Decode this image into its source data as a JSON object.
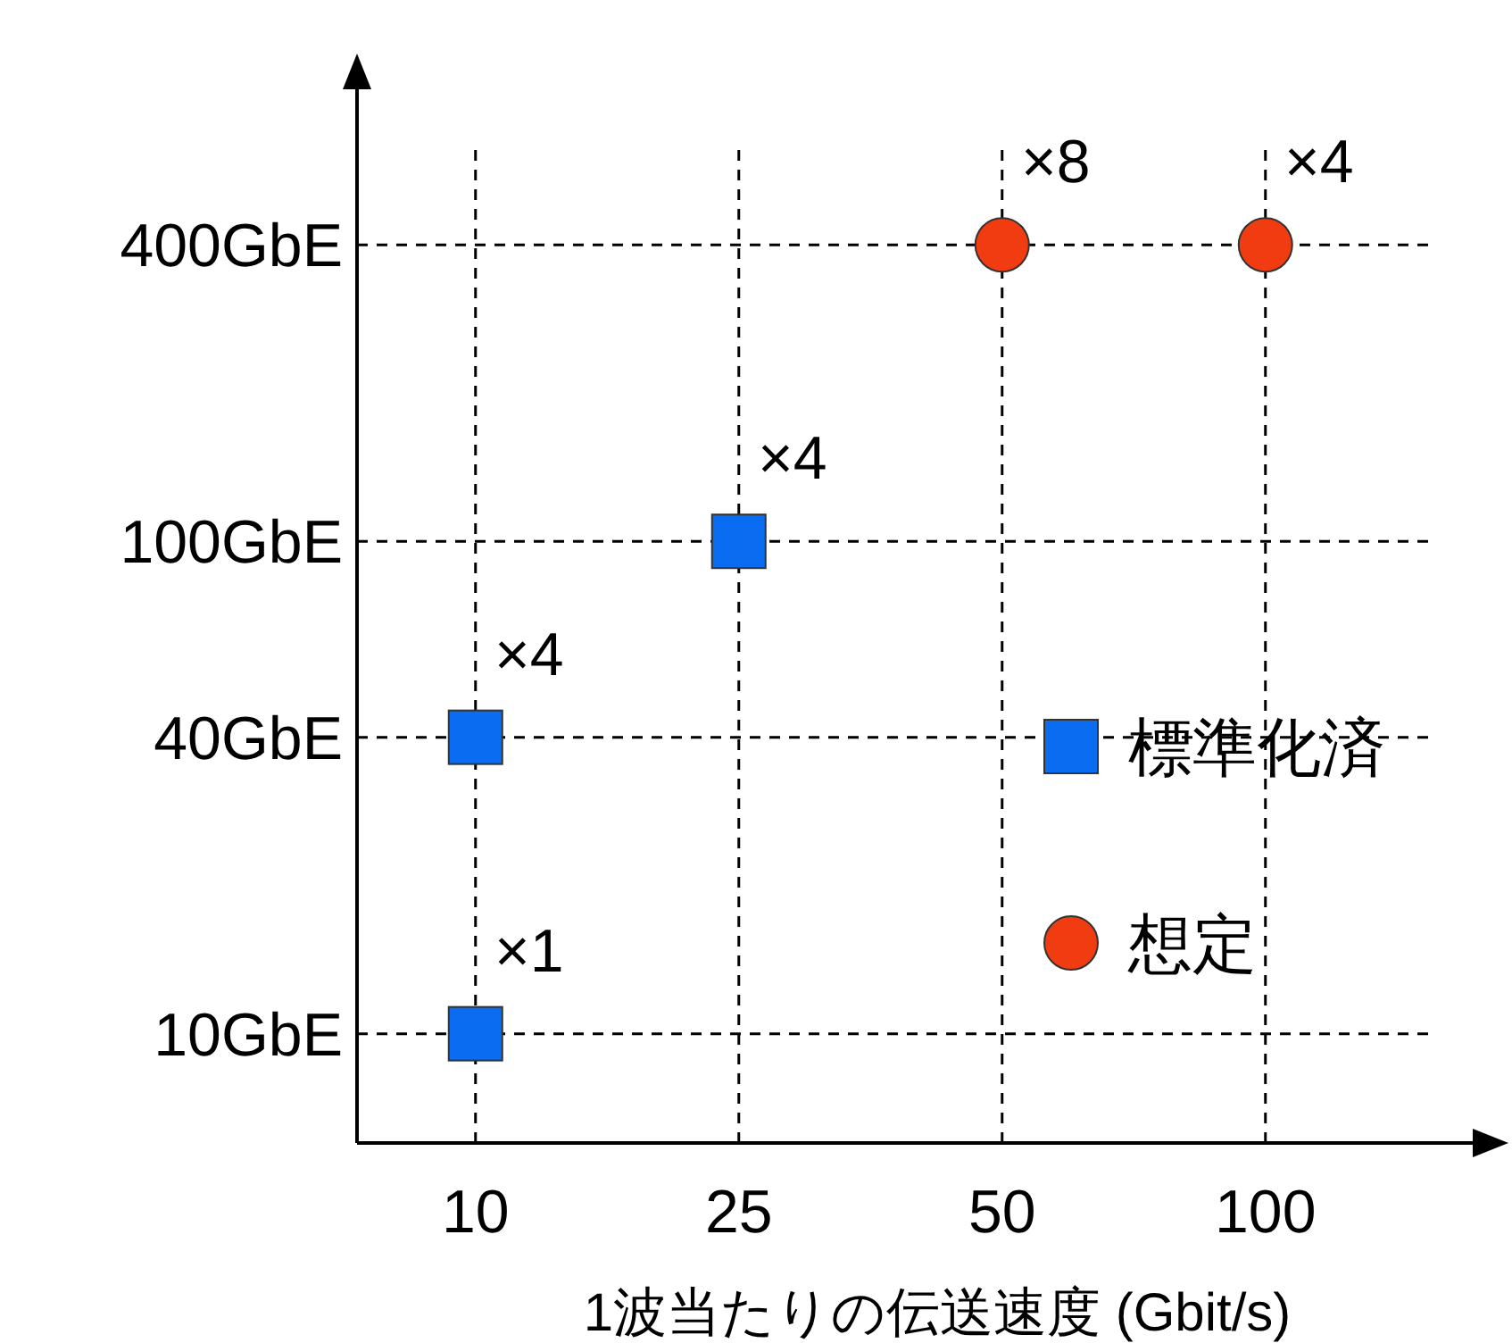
{
  "chart_data": {
    "type": "scatter",
    "xlabel": "1波当たりの伝送速度 (Gbit/s)",
    "categories": [
      "10",
      "25",
      "50",
      "100"
    ],
    "log": "y",
    "ylim": [
      6,
      900
    ],
    "yticks": [
      {
        "value": 10,
        "label": "10GbE"
      },
      {
        "value": 40,
        "label": "40GbE"
      },
      {
        "value": 100,
        "label": "100GbE"
      },
      {
        "value": 400,
        "label": "400GbE"
      }
    ],
    "grid": true,
    "legend": "right",
    "series": [
      {
        "name": "標準化済",
        "color": "#0a6cf0",
        "marker": "square",
        "x": [
          "10",
          "10",
          "25"
        ],
        "values": [
          10,
          40,
          100
        ]
      },
      {
        "name": "想定",
        "color": "#f03c10",
        "marker": "circle",
        "x": [
          "50",
          "100"
        ],
        "values": [
          400,
          400
        ]
      }
    ],
    "annotations": [
      {
        "text": "×1",
        "x": "10",
        "y": 10
      },
      {
        "text": "×4",
        "x": "10",
        "y": 40
      },
      {
        "text": "×4",
        "x": "25",
        "y": 100
      },
      {
        "text": "×8",
        "x": "50",
        "y": 400
      },
      {
        "text": "×4",
        "x": "100",
        "y": 400
      }
    ]
  }
}
